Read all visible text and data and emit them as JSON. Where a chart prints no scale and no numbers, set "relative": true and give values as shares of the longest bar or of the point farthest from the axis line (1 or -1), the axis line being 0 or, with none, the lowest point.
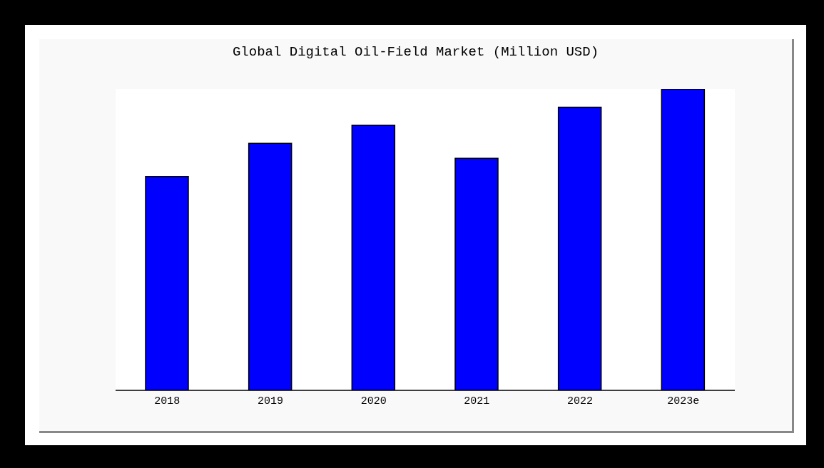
{
  "chart_data": {
    "type": "bar",
    "title": "Global Digital Oil-Field Market (Million USD)",
    "categories": [
      "2018",
      "2019",
      "2020",
      "2021",
      "2022",
      "2023e"
    ],
    "values": [
      0.71,
      0.82,
      0.88,
      0.77,
      0.94,
      1
    ],
    "color": "#0000ff",
    "relative": true,
    "grid": false,
    "legend": false
  }
}
